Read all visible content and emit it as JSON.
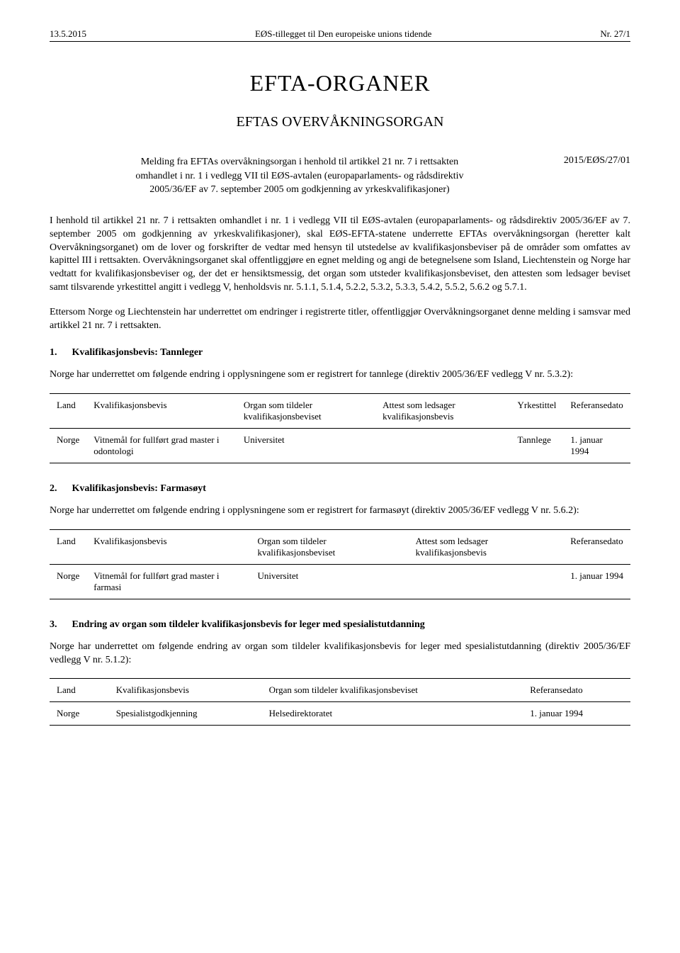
{
  "header": {
    "left": "13.5.2015",
    "center": "EØS-tillegget til Den europeiske unions tidende",
    "right": "Nr. 27/1"
  },
  "main_title": "EFTA-ORGANER",
  "sub_title": "EFTAS OVERVÅKNINGSORGAN",
  "notice": {
    "line1": "Melding fra EFTAs overvåkningsorgan i henhold til artikkel 21 nr. 7 i rettsakten",
    "line2": "omhandlet i nr. 1 i vedlegg VII til EØS-avtalen (europaparlaments- og rådsdirektiv",
    "line3": "2005/36/EF av 7. september 2005 om godkjenning av yrkeskvalifikasjoner)",
    "ref": "2015/EØS/27/01"
  },
  "para1": "I henhold til artikkel 21 nr. 7 i rettsakten omhandlet i nr. 1 i vedlegg VII til EØS-avtalen (europaparlaments- og rådsdirektiv 2005/36/EF av 7. september 2005 om godkjenning av yrkeskvalifikasjoner), skal EØS-EFTA-statene underrette EFTAs overvåkningsorgan (heretter kalt Overvåkningsorganet) om de lover og forskrifter de vedtar med hensyn til utstedelse av kvalifikasjonsbeviser på de områder som omfattes av kapittel III i rettsakten. Overvåkningsorganet skal offentliggjøre en egnet melding og angi de betegnelsene som Island, Liechtenstein og Norge har vedtatt for kvalifikasjonsbeviser og, der det er hensiktsmessig, det organ som utsteder kvalifikasjonsbeviset, den attesten som ledsager beviset samt tilsvarende yrkestittel angitt i vedlegg V, henholdsvis nr. 5.1.1, 5.1.4, 5.2.2, 5.3.2, 5.3.3, 5.4.2, 5.5.2, 5.6.2 og 5.7.1.",
  "para2": "Ettersom Norge og Liechtenstein har underrettet om endringer i registrerte titler, offentliggjør Overvåkningsorganet denne melding i samsvar med artikkel 21 nr. 7 i rettsakten.",
  "section1": {
    "num": "1.",
    "title": "Kvalifikasjonsbevis: Tannleger",
    "intro": "Norge har underrettet om følgende endring i opplysningene som er registrert for tannlege (direktiv 2005/36/EF vedlegg V nr. 5.3.2):",
    "columns": [
      "Land",
      "Kvalifikasjonsbevis",
      "Organ som tildeler kvalifikasjonsbeviset",
      "Attest som ledsager kvalifikasjonsbevis",
      "Yrkestittel",
      "Referansedato"
    ],
    "row": [
      "Norge",
      "Vitnemål for fullført grad master i odontologi",
      "Universitet",
      "",
      "Tannlege",
      "1. januar 1994"
    ]
  },
  "section2": {
    "num": "2.",
    "title": "Kvalifikasjonsbevis: Farmasøyt",
    "intro": "Norge har underrettet om følgende endring i opplysningene som er registrert for farmasøyt (direktiv 2005/36/EF vedlegg V nr. 5.6.2):",
    "columns": [
      "Land",
      "Kvalifikasjonsbevis",
      "Organ som tildeler kvalifikasjonsbeviset",
      "Attest som ledsager kvalifikasjonsbevis",
      "Referansedato"
    ],
    "row": [
      "Norge",
      "Vitnemål for fullført grad master i farmasi",
      "Universitet",
      "",
      "1. januar 1994"
    ]
  },
  "section3": {
    "num": "3.",
    "title": "Endring av organ som tildeler kvalifikasjonsbevis for leger med spesialistutdanning",
    "intro": "Norge har underrettet om følgende endring av organ som tildeler kvalifikasjonsbevis for leger med spesialistutdanning (direktiv 2005/36/EF vedlegg V nr. 5.1.2):",
    "columns": [
      "Land",
      "Kvalifikasjonsbevis",
      "Organ som tildeler kvalifikasjonsbeviset",
      "Referansedato"
    ],
    "row": [
      "Norge",
      "Spesialistgodkjenning",
      "Helsedirektoratet",
      "1. januar 1994"
    ]
  }
}
